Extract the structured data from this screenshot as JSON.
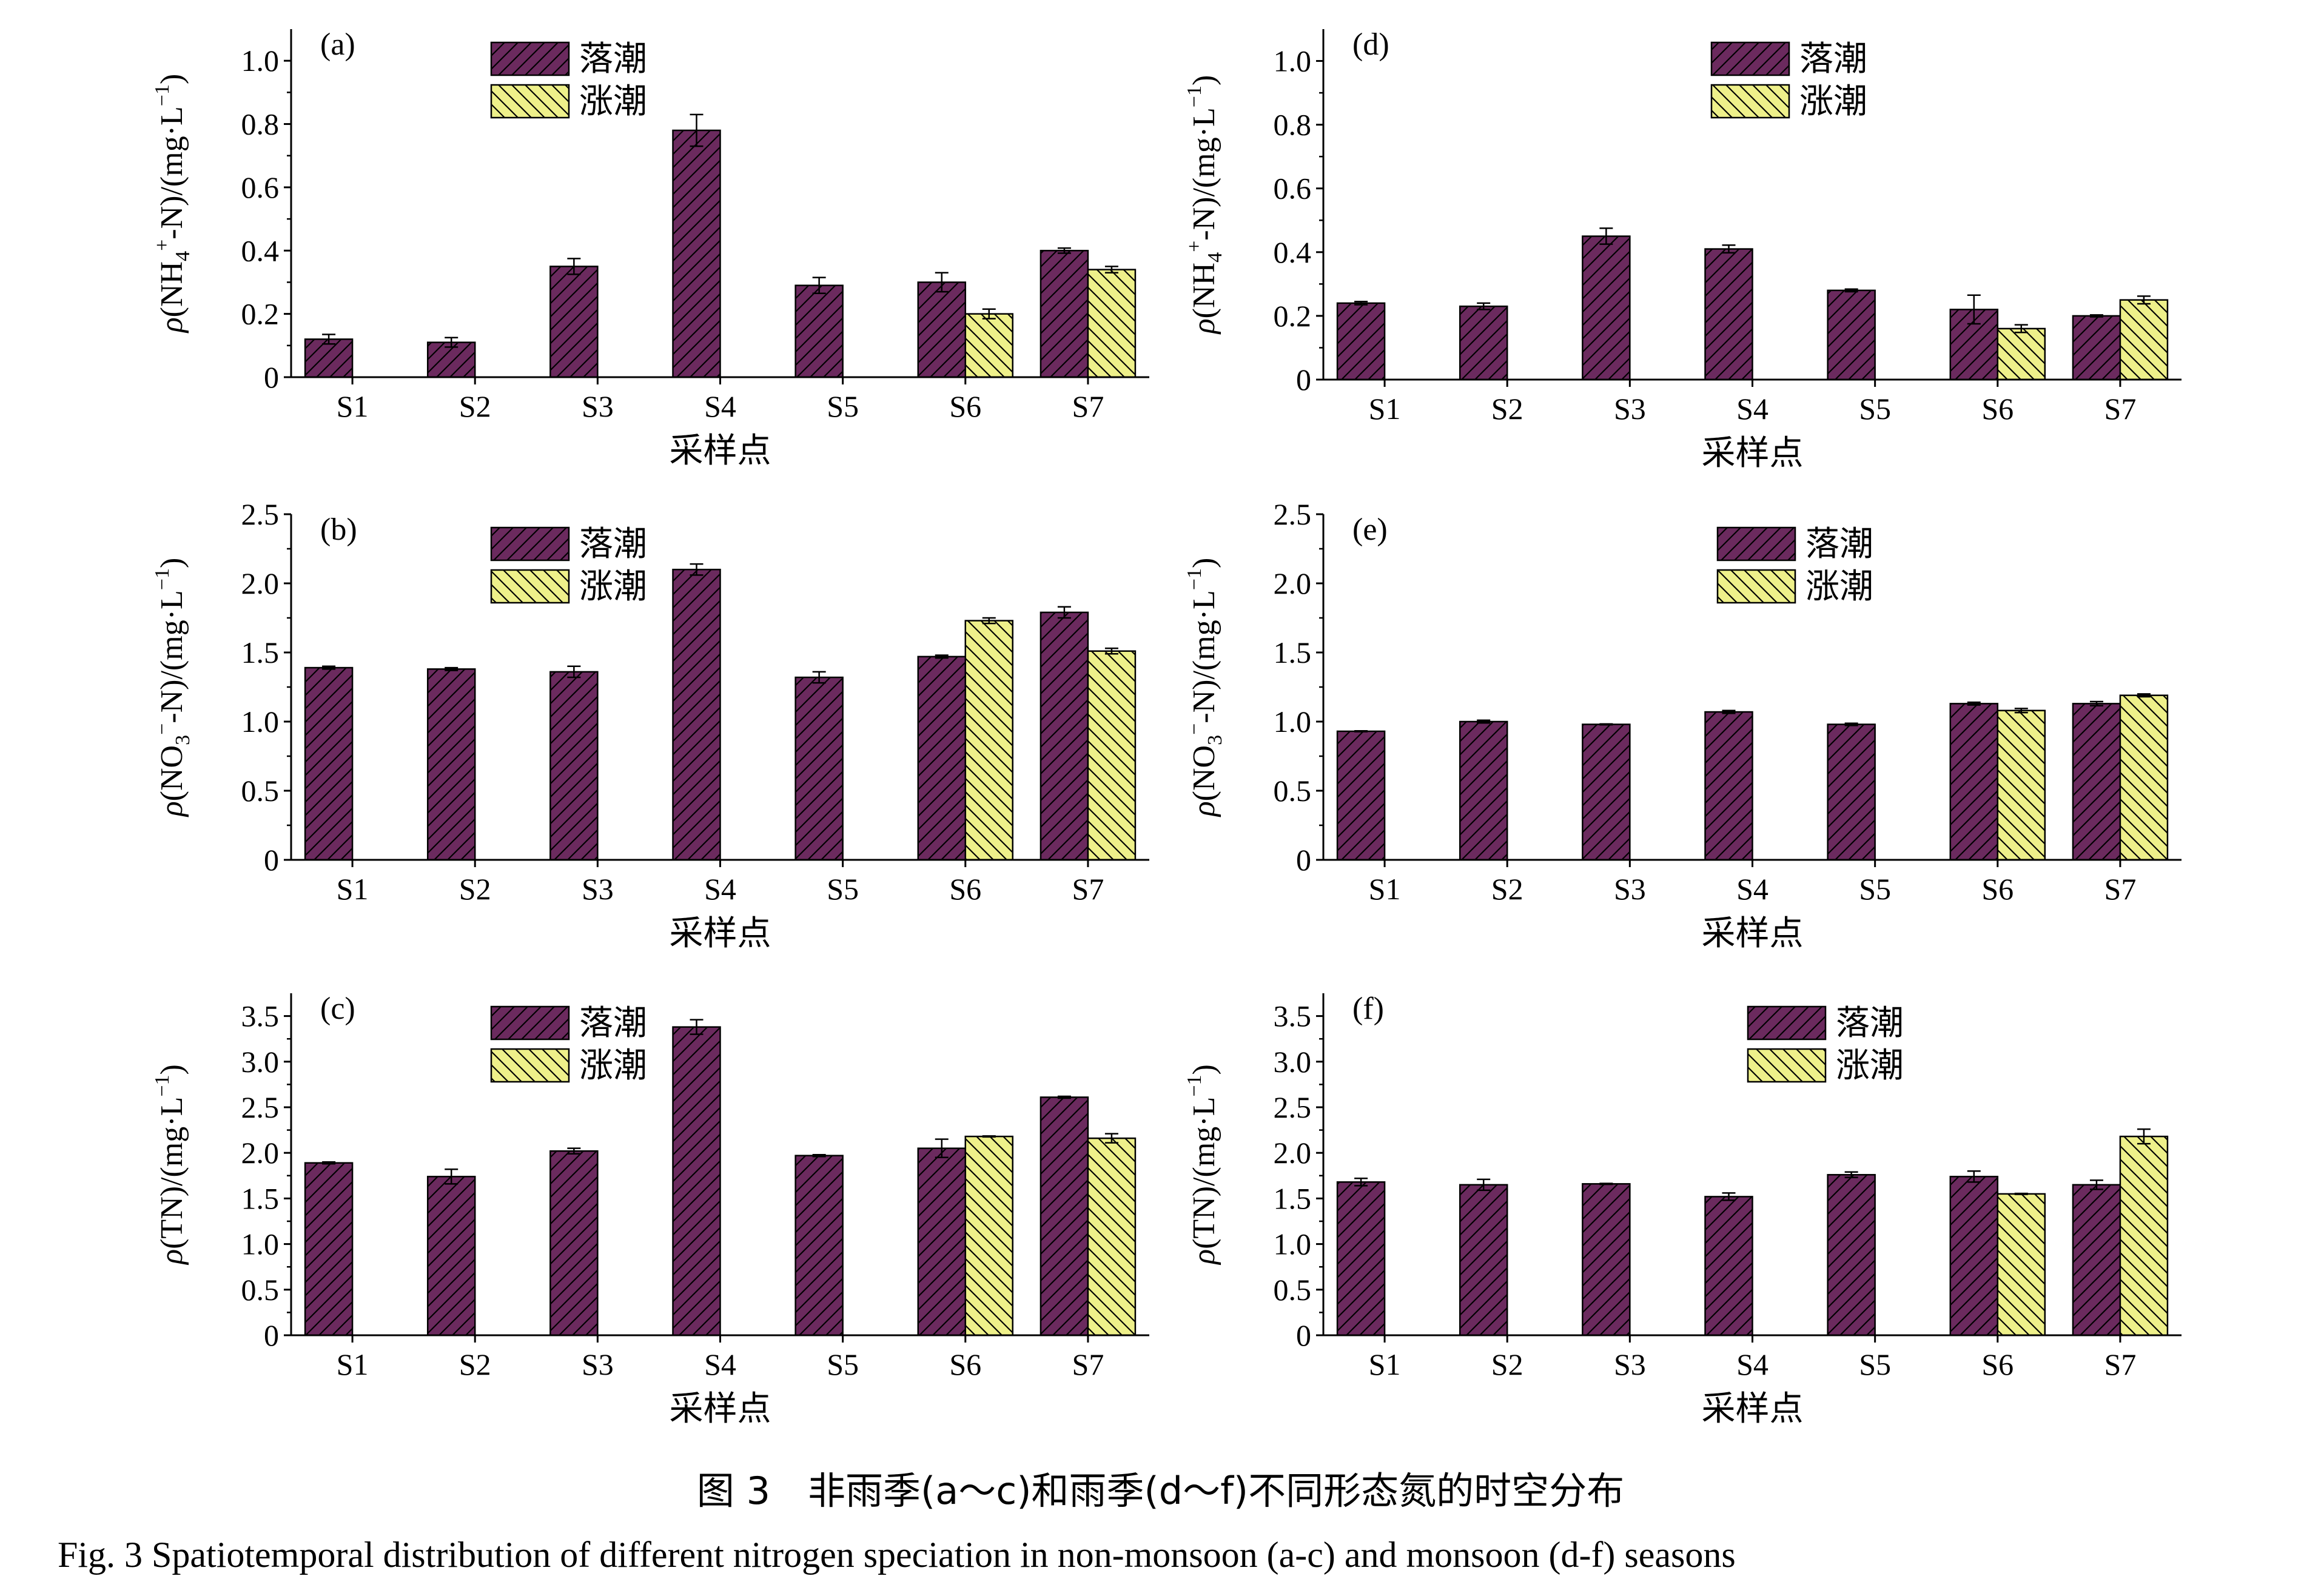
{
  "chart_data": [
    {
      "panel": "a",
      "type": "bar",
      "ylabel_parts": [
        "ρ",
        "(NH",
        "4",
        "+",
        "-N)/(mg·L",
        "−1",
        ")"
      ],
      "ylim": [
        0,
        1.1
      ],
      "yticks": [
        0,
        0.2,
        0.4,
        0.6,
        0.8,
        1.0
      ],
      "ytick_labels": [
        "0",
        "0.2",
        "0.4",
        "0.6",
        "0.8",
        "1.0"
      ],
      "categories": [
        "S1",
        "S2",
        "S3",
        "S4",
        "S5",
        "S6",
        "S7"
      ],
      "xlabel": "采样点",
      "series": [
        {
          "name": "落潮",
          "values": [
            0.12,
            0.11,
            0.35,
            0.78,
            0.29,
            0.3,
            0.4
          ],
          "errors": [
            0.015,
            0.015,
            0.025,
            0.05,
            0.025,
            0.03,
            0.008
          ]
        },
        {
          "name": "涨潮",
          "values": [
            null,
            null,
            null,
            null,
            null,
            0.2,
            0.34
          ],
          "errors": [
            null,
            null,
            null,
            null,
            null,
            0.015,
            0.01
          ]
        }
      ],
      "legend": "top-center"
    },
    {
      "panel": "b",
      "type": "bar",
      "ylabel_parts": [
        "ρ",
        "(NO",
        "3",
        "−",
        "-N)/(mg·L",
        "−1",
        ")"
      ],
      "ylim": [
        0,
        2.5
      ],
      "yticks": [
        0,
        0.5,
        1.0,
        1.5,
        2.0,
        2.5
      ],
      "ytick_labels": [
        "0",
        "0.5",
        "1.0",
        "1.5",
        "2.0",
        "2.5"
      ],
      "categories": [
        "S1",
        "S2",
        "S3",
        "S4",
        "S5",
        "S6",
        "S7"
      ],
      "xlabel": "采样点",
      "series": [
        {
          "name": "落潮",
          "values": [
            1.39,
            1.38,
            1.36,
            2.1,
            1.32,
            1.47,
            1.79
          ],
          "errors": [
            0.01,
            0.01,
            0.04,
            0.04,
            0.04,
            0.01,
            0.04
          ]
        },
        {
          "name": "涨潮",
          "values": [
            null,
            null,
            null,
            null,
            null,
            1.73,
            1.51
          ],
          "errors": [
            null,
            null,
            null,
            null,
            null,
            0.02,
            0.02
          ]
        }
      ],
      "legend": "top-center"
    },
    {
      "panel": "c",
      "type": "bar",
      "ylabel_parts": [
        "ρ",
        "(TN)/(mg·L",
        "−1",
        ")"
      ],
      "ylim": [
        0,
        3.75
      ],
      "yticks": [
        0,
        0.5,
        1.0,
        1.5,
        2.0,
        2.5,
        3.0,
        3.5
      ],
      "ytick_labels": [
        "0",
        "0.5",
        "1.0",
        "1.5",
        "2.0",
        "2.5",
        "3.0",
        "3.5"
      ],
      "categories": [
        "S1",
        "S2",
        "S3",
        "S4",
        "S5",
        "S6",
        "S7"
      ],
      "xlabel": "采样点",
      "series": [
        {
          "name": "落潮",
          "values": [
            1.89,
            1.74,
            2.02,
            3.38,
            1.97,
            2.05,
            2.61
          ],
          "errors": [
            0.01,
            0.08,
            0.03,
            0.08,
            0.01,
            0.1,
            0.01
          ]
        },
        {
          "name": "涨潮",
          "values": [
            null,
            null,
            null,
            null,
            null,
            2.18,
            2.16
          ],
          "errors": [
            null,
            null,
            null,
            null,
            null,
            0.005,
            0.05
          ]
        }
      ],
      "legend": "top-center"
    },
    {
      "panel": "d",
      "type": "bar",
      "ylabel_parts": [
        "ρ",
        "(NH",
        "4",
        "+",
        "-N)/(mg·L",
        "−1",
        ")"
      ],
      "ylim": [
        0,
        1.1
      ],
      "yticks": [
        0,
        0.2,
        0.4,
        0.6,
        0.8,
        1.0
      ],
      "ytick_labels": [
        "0",
        "0.2",
        "0.4",
        "0.6",
        "0.8",
        "1.0"
      ],
      "categories": [
        "S1",
        "S2",
        "S3",
        "S4",
        "S5",
        "S6",
        "S7"
      ],
      "xlabel": "采样点",
      "series": [
        {
          "name": "落潮",
          "values": [
            0.24,
            0.23,
            0.45,
            0.41,
            0.28,
            0.22,
            0.2
          ],
          "errors": [
            0.005,
            0.01,
            0.025,
            0.012,
            0.004,
            0.045,
            0.003
          ]
        },
        {
          "name": "涨潮",
          "values": [
            null,
            null,
            null,
            null,
            null,
            0.16,
            0.25
          ],
          "errors": [
            null,
            null,
            null,
            null,
            null,
            0.012,
            0.012
          ]
        }
      ],
      "legend": "top-center"
    },
    {
      "panel": "e",
      "type": "bar",
      "ylabel_parts": [
        "ρ",
        "(NO",
        "3",
        "−",
        "-N)/(mg·L",
        "−1",
        ")"
      ],
      "ylim": [
        0,
        2.5
      ],
      "yticks": [
        0,
        0.5,
        1.0,
        1.5,
        2.0,
        2.5
      ],
      "ytick_labels": [
        "0",
        "0.5",
        "1.0",
        "1.5",
        "2.0",
        "2.5"
      ],
      "categories": [
        "S1",
        "S2",
        "S3",
        "S4",
        "S5",
        "S6",
        "S7"
      ],
      "xlabel": "采样点",
      "series": [
        {
          "name": "落潮",
          "values": [
            0.93,
            1.0,
            0.98,
            1.07,
            0.98,
            1.13,
            1.13
          ],
          "errors": [
            0.003,
            0.01,
            0.003,
            0.01,
            0.008,
            0.01,
            0.015
          ]
        },
        {
          "name": "涨潮",
          "values": [
            null,
            null,
            null,
            null,
            null,
            1.08,
            1.19
          ],
          "errors": [
            null,
            null,
            null,
            null,
            null,
            0.015,
            0.01
          ]
        }
      ],
      "legend": "top-center"
    },
    {
      "panel": "f",
      "type": "bar",
      "ylabel_parts": [
        "ρ",
        "(TN)/(mg·L",
        "−1",
        ")"
      ],
      "ylim": [
        0,
        3.75
      ],
      "yticks": [
        0,
        0.5,
        1.0,
        1.5,
        2.0,
        2.5,
        3.0,
        3.5
      ],
      "ytick_labels": [
        "0",
        "0.5",
        "1.0",
        "1.5",
        "2.0",
        "2.5",
        "3.0",
        "3.5"
      ],
      "categories": [
        "S1",
        "S2",
        "S3",
        "S4",
        "S5",
        "S6",
        "S7"
      ],
      "xlabel": "采样点",
      "series": [
        {
          "name": "落潮",
          "values": [
            1.68,
            1.65,
            1.66,
            1.52,
            1.76,
            1.74,
            1.65
          ],
          "errors": [
            0.04,
            0.06,
            0.005,
            0.04,
            0.03,
            0.06,
            0.05
          ]
        },
        {
          "name": "涨潮",
          "values": [
            null,
            null,
            null,
            null,
            null,
            1.55,
            2.18
          ],
          "errors": [
            null,
            null,
            null,
            null,
            null,
            0.005,
            0.08
          ]
        }
      ],
      "legend": "top-center"
    }
  ],
  "colors": {
    "ebb_tide": "#6b2a5e",
    "flood_tide": "#eef08a",
    "hatch": "#000000"
  },
  "caption": {
    "chinese": "图 3　非雨季(a～c)和雨季(d～f)不同形态氮的时空分布",
    "english": "Fig. 3  Spatiotemporal distribution of different nitrogen speciation in non-monsoon (a-c) and monsoon (d-f) seasons"
  }
}
